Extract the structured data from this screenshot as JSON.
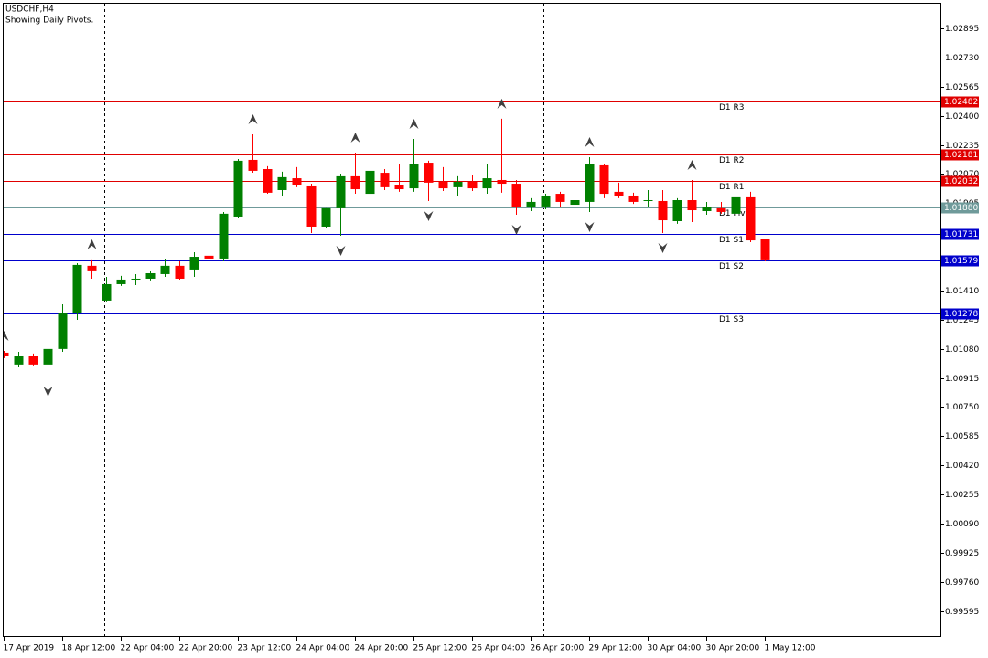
{
  "chart_data": {
    "type": "candlestick",
    "title": "USDCHF,H4",
    "subtitle": "Showing Daily Pivots.",
    "categories": [
      "17 Apr 2019",
      null,
      null,
      null,
      "18 Apr 12:00",
      null,
      null,
      null,
      "22 Apr 04:00",
      null,
      null,
      null,
      "22 Apr 20:00",
      null,
      null,
      null,
      "23 Apr 12:00",
      null,
      null,
      null,
      "24 Apr 04:00",
      null,
      null,
      null,
      "24 Apr 20:00",
      null,
      null,
      null,
      "25 Apr 12:00",
      null,
      null,
      null,
      "26 Apr 04:00",
      null,
      null,
      null,
      "26 Apr 20:00",
      null,
      null,
      null,
      "29 Apr 12:00",
      null,
      null,
      null,
      "30 Apr 04:00",
      null,
      null,
      null,
      "30 Apr 20:00",
      null,
      null,
      null,
      "1 May 12:00"
    ],
    "open": [
      1.01058,
      1.00991,
      1.01042,
      1.00991,
      1.01079,
      1.0128,
      1.0155,
      1.01353,
      1.01446,
      1.01472,
      1.01477,
      1.01503,
      1.0155,
      1.01529,
      1.01607,
      1.01591,
      1.01829,
      1.0215,
      1.02098,
      1.01979,
      1.02046,
      1.02005,
      1.01772,
      1.01876,
      1.02057,
      1.01958,
      1.02077,
      1.0201,
      1.01989,
      1.02134,
      1.02026,
      1.01995,
      1.02026,
      1.01989,
      1.02036,
      1.02015,
      1.01881,
      1.01886,
      1.01958,
      1.01896,
      1.01912,
      1.02119,
      1.01969,
      1.01948,
      1.01917,
      1.01917,
      1.01803,
      1.01922,
      1.0186,
      1.01876,
      1.01845,
      1.01938,
      1.017
    ],
    "high": [
      1.01068,
      1.01063,
      1.01053,
      1.01099,
      1.01332,
      1.01565,
      1.01586,
      1.01487,
      1.01493,
      1.01503,
      1.01519,
      1.01591,
      1.01575,
      1.01627,
      1.01617,
      1.01855,
      1.02155,
      1.02295,
      1.02114,
      1.02083,
      1.02109,
      1.02015,
      1.01876,
      1.02072,
      1.02191,
      1.02103,
      1.02098,
      1.02124,
      1.02269,
      1.02145,
      1.02109,
      1.02057,
      1.02067,
      1.02129,
      1.02383,
      1.02036,
      1.01933,
      1.01958,
      1.01969,
      1.01958,
      1.02165,
      1.02129,
      1.02021,
      1.01964,
      1.01979,
      1.01979,
      1.01933,
      1.02036,
      1.01912,
      1.01912,
      1.01958,
      1.01969,
      1.017
    ],
    "low": [
      1.01027,
      1.00975,
      1.00986,
      1.00923,
      1.01063,
      1.01244,
      1.01477,
      1.01348,
      1.01436,
      1.01441,
      1.01467,
      1.01487,
      1.01472,
      1.01487,
      1.01555,
      1.01575,
      1.01824,
      1.02077,
      1.01958,
      1.01948,
      1.01995,
      1.01736,
      1.01762,
      1.0172,
      1.01958,
      1.01943,
      1.01979,
      1.01969,
      1.01969,
      1.01917,
      1.01974,
      1.01943,
      1.01974,
      1.01958,
      1.01964,
      1.01839,
      1.0186,
      1.0187,
      1.01886,
      1.01876,
      1.01855,
      1.01933,
      1.01933,
      1.01901,
      1.01886,
      1.01736,
      1.01788,
      1.01798,
      1.01839,
      1.01845,
      1.01824,
      1.01684,
      1.01575
    ],
    "close": [
      1.01037,
      1.01042,
      1.00991,
      1.01079,
      1.0128,
      1.01555,
      1.01524,
      1.01446,
      1.01472,
      1.01477,
      1.01508,
      1.0155,
      1.01477,
      1.01601,
      1.01591,
      1.01845,
      1.02145,
      1.02088,
      1.01964,
      1.02052,
      1.0201,
      1.01772,
      1.01876,
      1.02057,
      1.01984,
      1.02088,
      1.01995,
      1.01984,
      1.02129,
      1.02021,
      1.01989,
      1.02026,
      1.01989,
      1.02046,
      1.02015,
      1.01881,
      1.01912,
      1.01948,
      1.01912,
      1.01922,
      1.02124,
      1.01958,
      1.01943,
      1.01912,
      1.01922,
      1.01808,
      1.01922,
      1.01865,
      1.01881,
      1.01855,
      1.01938,
      1.01694,
      1.01586
    ],
    "up_color": "#008000",
    "down_color": "#ff0000",
    "fractals_up": [
      1.01068,
      null,
      null,
      null,
      null,
      null,
      1.01586,
      null,
      null,
      null,
      null,
      null,
      null,
      null,
      null,
      null,
      null,
      1.02295,
      null,
      null,
      null,
      null,
      null,
      null,
      1.02191,
      null,
      null,
      null,
      1.02269,
      null,
      null,
      null,
      null,
      null,
      1.02383,
      null,
      null,
      null,
      null,
      null,
      1.02165,
      null,
      null,
      null,
      null,
      null,
      null,
      1.02036,
      null,
      null,
      null,
      null,
      null
    ],
    "fractals_down": [
      null,
      null,
      null,
      1.00923,
      null,
      null,
      null,
      null,
      null,
      null,
      null,
      null,
      null,
      null,
      null,
      null,
      null,
      null,
      null,
      null,
      null,
      null,
      null,
      1.0172,
      null,
      null,
      null,
      null,
      null,
      1.01917,
      null,
      null,
      null,
      null,
      null,
      1.01839,
      null,
      null,
      null,
      null,
      1.01855,
      null,
      null,
      null,
      null,
      1.01736,
      null,
      null,
      null,
      null,
      null,
      null,
      null
    ],
    "fractal_color": "#404040",
    "levels": [
      {
        "name": "D1 R3",
        "value": 1.02482,
        "color": "#e00000"
      },
      {
        "name": "D1 R2",
        "value": 1.02181,
        "color": "#e00000"
      },
      {
        "name": "D1 R1",
        "value": 1.02032,
        "color": "#e00000"
      },
      {
        "name": "D1 Pivot",
        "value": 1.0188,
        "value_label": "1.01880",
        "color": "#6f9a9a"
      },
      {
        "name": "D1 S1",
        "value": 1.01731,
        "color": "#0000cc"
      },
      {
        "name": "D1 S2",
        "value": 1.01579,
        "color": "#0000cc"
      },
      {
        "name": "D1 S3",
        "value": 1.01278,
        "color": "#0000cc"
      }
    ],
    "ylim": [
      0.99448,
      1.0304
    ],
    "yticks": [
      1.02895,
      {
        "value": 1.0273,
        "label": "1.02730"
      },
      1.02565,
      {
        "value": 1.024,
        "label": "1.02400"
      },
      1.02235,
      {
        "value": 1.0207,
        "label": "1.02070"
      },
      1.01905,
      {
        "value": 1.0141,
        "label": "1.01410"
      },
      1.01245,
      {
        "value": 1.0108,
        "label": "1.01080"
      },
      1.00915,
      {
        "value": 1.0075,
        "label": "1.00750"
      },
      1.00585,
      {
        "value": 1.0042,
        "label": "1.00420"
      },
      1.00255,
      {
        "value": 1.0009,
        "label": "1.00090"
      },
      0.99925,
      {
        "value": 0.9976,
        "label": "0.99760"
      },
      0.99595
    ]
  }
}
